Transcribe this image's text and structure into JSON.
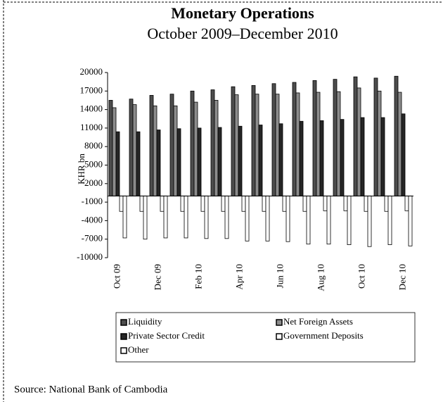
{
  "chart_data": {
    "type": "bar",
    "title": "Monetary Operations",
    "subtitle": "October 2009–December 2010",
    "y_label": "KHR bn",
    "source": "Source: National Bank of Cambodia",
    "categories": [
      "Oct 09",
      null,
      "Dec 09",
      null,
      "Feb 10",
      null,
      "Apr 10",
      null,
      "Jun 10",
      null,
      "Aug 10",
      null,
      "Oct 10",
      null,
      "Dec 10"
    ],
    "series": [
      {
        "name": "Liquidity",
        "color": "#4d4d4d",
        "values": [
          15500,
          15700,
          16300,
          16500,
          17000,
          17200,
          17700,
          17900,
          18200,
          18400,
          18700,
          18900,
          19300,
          19100,
          19400
        ]
      },
      {
        "name": "Net Foreign Assets",
        "color": "#8c8c8c",
        "values": [
          14300,
          14800,
          14600,
          14600,
          15200,
          15500,
          16400,
          16500,
          16500,
          16700,
          16800,
          16900,
          17500,
          17000,
          16800
        ]
      },
      {
        "name": "Private Sector Credit",
        "color": "#262626",
        "values": [
          10400,
          10400,
          10700,
          10900,
          11000,
          11100,
          11300,
          11500,
          11700,
          12100,
          12200,
          12400,
          12700,
          12700,
          13300
        ]
      },
      {
        "name": "Government Deposits",
        "color": "#ffffff",
        "values": [
          -2500,
          -2500,
          -2500,
          -2500,
          -2500,
          -2500,
          -2500,
          -2500,
          -2500,
          -2500,
          -2400,
          -2400,
          -2500,
          -2500,
          -2400
        ]
      },
      {
        "name": "Other",
        "color": "#ffffff",
        "values": [
          -6800,
          -7000,
          -6800,
          -6800,
          -6900,
          -6900,
          -7300,
          -7300,
          -7400,
          -7800,
          -7800,
          -7900,
          -8200,
          -7900,
          -8100
        ]
      }
    ],
    "ylim": [
      -10000,
      20000
    ],
    "yticks": [
      20000,
      17000,
      14000,
      11000,
      8000,
      5000,
      2000,
      -1000,
      -4000,
      -7000,
      -10000
    ]
  }
}
